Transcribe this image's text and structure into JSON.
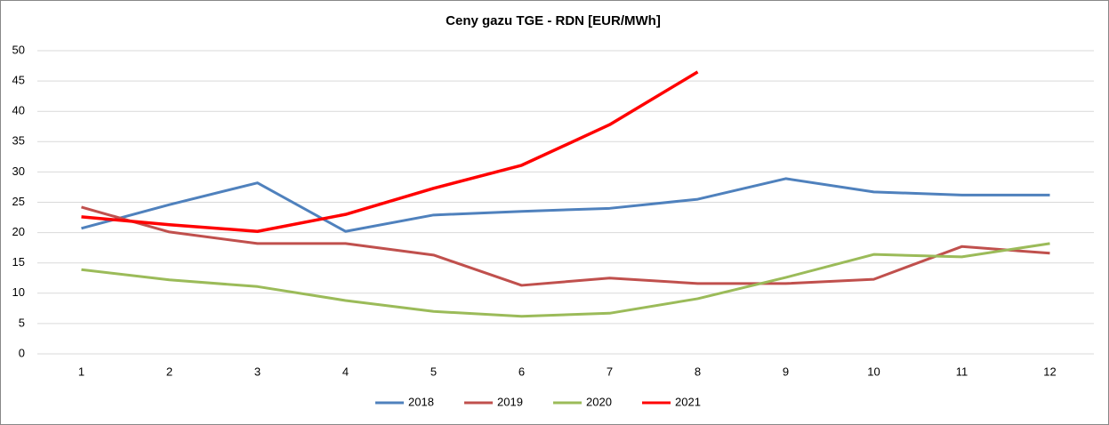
{
  "chart_data": {
    "type": "line",
    "title": "Ceny gazu TGE - RDN [EUR/MWh]",
    "categories": [
      "1",
      "2",
      "3",
      "4",
      "5",
      "6",
      "7",
      "8",
      "9",
      "10",
      "11",
      "12"
    ],
    "series": [
      {
        "name": "2018",
        "color": "#4f81bd",
        "values": [
          20.7,
          24.6,
          28.2,
          20.2,
          22.9,
          23.5,
          24.0,
          25.5,
          28.9,
          26.7,
          26.2,
          26.2
        ]
      },
      {
        "name": "2019",
        "color": "#c0504d",
        "values": [
          24.2,
          20.1,
          18.2,
          18.2,
          16.3,
          11.3,
          12.5,
          11.6,
          11.6,
          12.3,
          17.7,
          16.6
        ]
      },
      {
        "name": "2020",
        "color": "#9bbb59",
        "values": [
          13.9,
          12.2,
          11.1,
          8.8,
          7.0,
          6.2,
          6.7,
          9.1,
          12.6,
          16.4,
          16.0,
          18.2
        ]
      },
      {
        "name": "2021",
        "color": "#ff0000",
        "values": [
          22.6,
          21.3,
          20.2,
          23.0,
          27.3,
          31.1,
          37.8,
          46.5,
          null,
          null,
          null,
          null
        ]
      }
    ],
    "ylim": [
      0,
      50
    ],
    "yticks": [
      0,
      5,
      10,
      15,
      20,
      25,
      30,
      35,
      40,
      45,
      50
    ],
    "grid": true,
    "legend": "bottom"
  }
}
